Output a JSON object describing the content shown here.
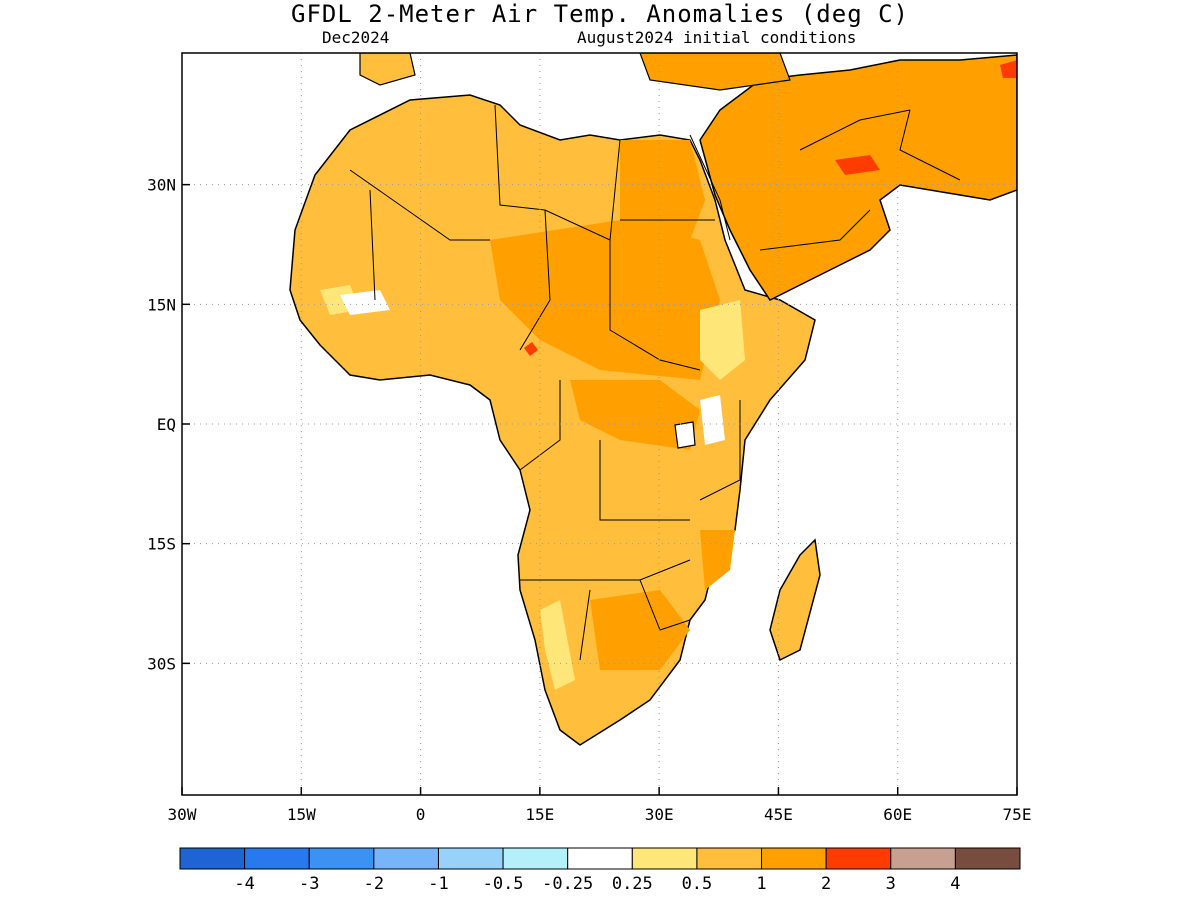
{
  "title": "GFDL 2-Meter Air Temp. Anomalies (deg C)",
  "valid_month": "Dec2024",
  "init_conditions": "August2024 initial conditions",
  "map": {
    "lon_range": [
      -30,
      75
    ],
    "lat_range": [
      -46.5,
      46.5
    ],
    "lon_ticks": [
      {
        "value": -30,
        "label": "30W"
      },
      {
        "value": -15,
        "label": "15W"
      },
      {
        "value": 0,
        "label": "0"
      },
      {
        "value": 15,
        "label": "15E"
      },
      {
        "value": 30,
        "label": "30E"
      },
      {
        "value": 45,
        "label": "45E"
      },
      {
        "value": 60,
        "label": "60E"
      },
      {
        "value": 75,
        "label": "75E"
      }
    ],
    "lat_ticks": [
      {
        "value": 30,
        "label": "30N"
      },
      {
        "value": 15,
        "label": "15N"
      },
      {
        "value": 0,
        "label": "EQ"
      },
      {
        "value": -15,
        "label": "15S"
      },
      {
        "value": -30,
        "label": "30S"
      }
    ],
    "gridlines": "dotted"
  },
  "colorbar": {
    "colors": [
      "#1e64d2",
      "#2878ee",
      "#3c91f5",
      "#78b4f8",
      "#96d2fa",
      "#b4f0fa",
      "#ffffff",
      "#ffe678",
      "#ffbe3c",
      "#ffa000",
      "#ff3c00",
      "#c8a092",
      "#784c3e"
    ],
    "labels": [
      "-4",
      "-3",
      "-2",
      "-1",
      "-0.5",
      "-0.25",
      "0.25",
      "0.5",
      "1",
      "2",
      "3",
      "4"
    ]
  },
  "colors": {
    "land_anomaly_0_5_to_1": "#ffbe3c",
    "land_anomaly_1_to_2": "#ffa000",
    "land_anomaly_0_25_to_0_5": "#ffe678",
    "land_anomaly_2_to_3": "#ff3c00"
  }
}
